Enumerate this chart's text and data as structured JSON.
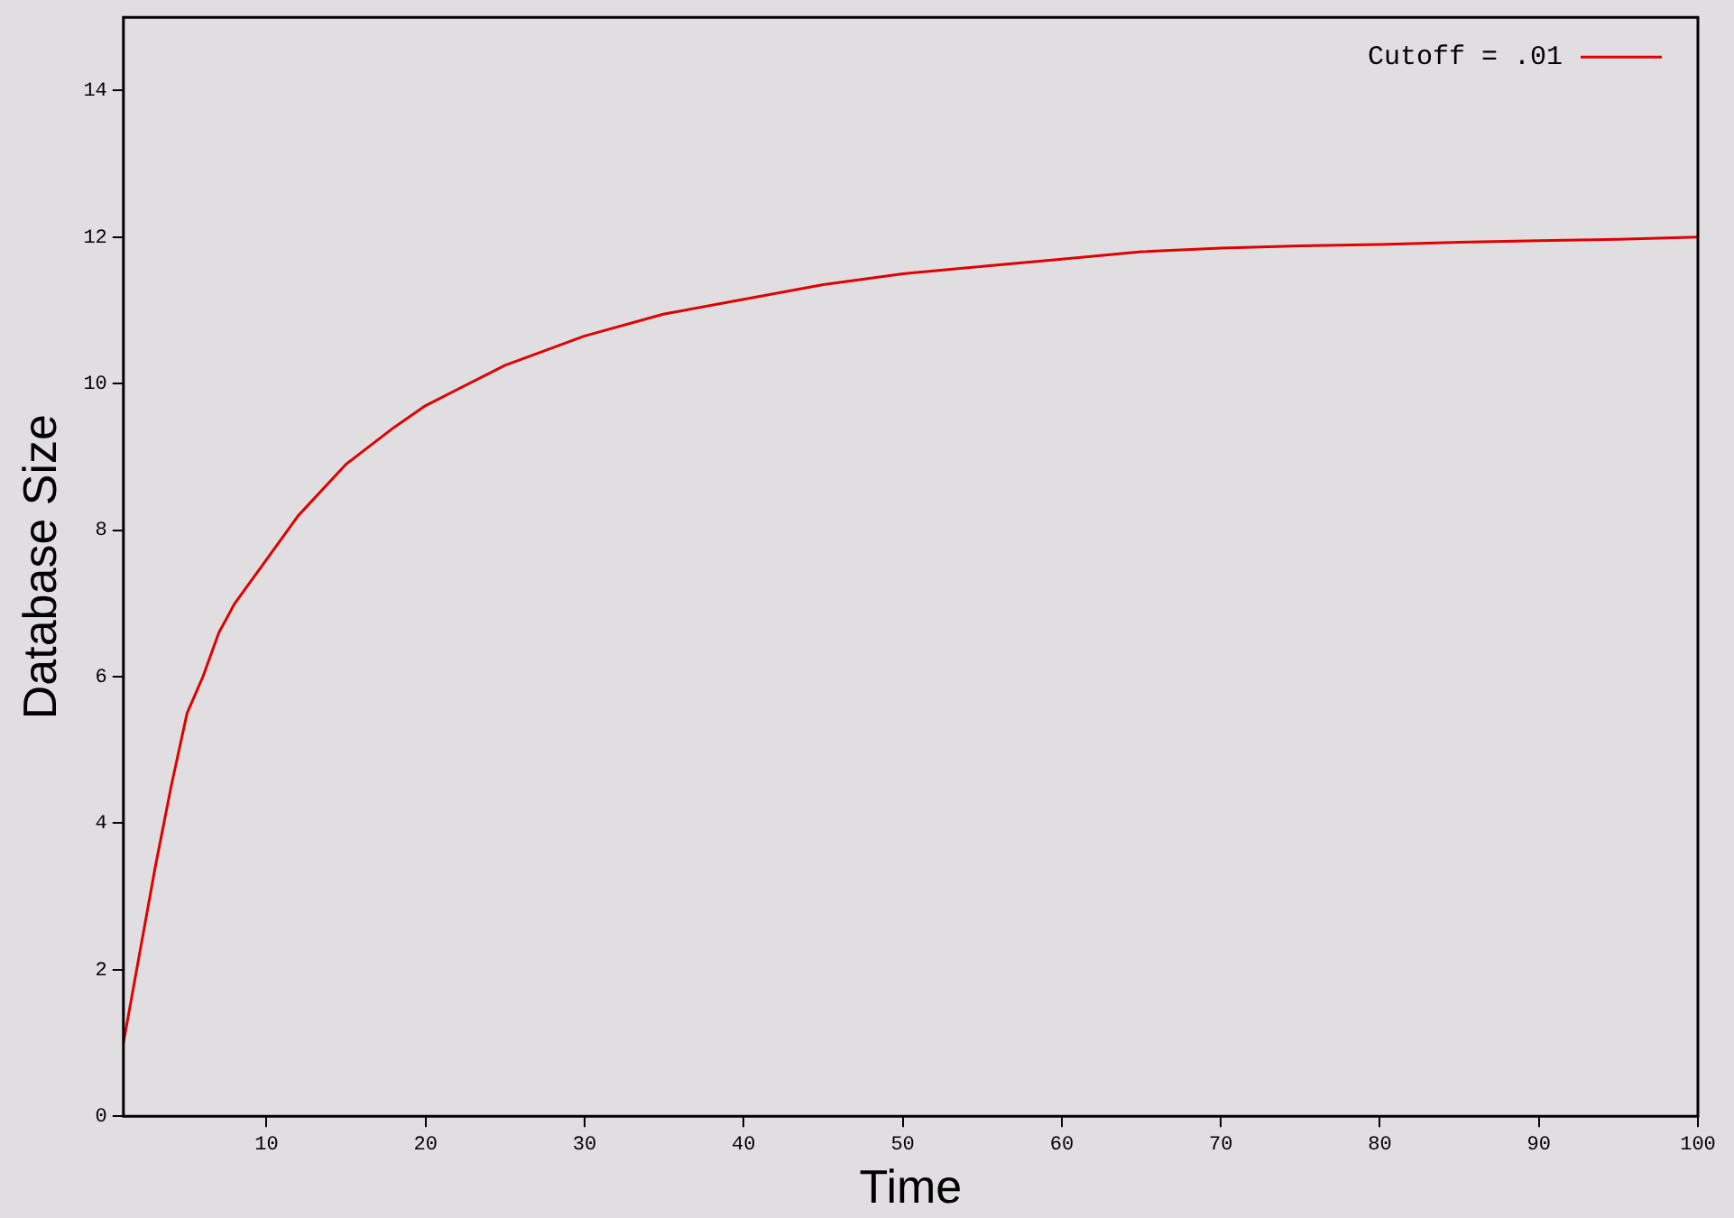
{
  "chart_data": {
    "type": "line",
    "xlabel": "Time",
    "ylabel": "Database Size",
    "x": [
      1,
      2,
      3,
      4,
      5,
      6,
      7,
      8,
      10,
      12,
      15,
      18,
      20,
      25,
      30,
      35,
      40,
      45,
      50,
      55,
      60,
      65,
      70,
      75,
      80,
      85,
      90,
      95,
      100
    ],
    "series": [
      {
        "name": "Cutoff = .01",
        "color": "#e00000",
        "values": [
          1,
          2.2,
          3.4,
          4.5,
          5.5,
          6.0,
          6.6,
          7.0,
          7.6,
          8.2,
          8.9,
          9.4,
          9.7,
          10.25,
          10.65,
          10.95,
          11.15,
          11.35,
          11.5,
          11.6,
          11.7,
          11.8,
          11.85,
          11.88,
          11.9,
          11.93,
          11.95,
          11.97,
          12.0
        ]
      }
    ],
    "xlim": [
      1,
      100
    ],
    "xticks": [
      10,
      20,
      30,
      40,
      50,
      60,
      70,
      80,
      90,
      100
    ],
    "ylim": [
      0,
      15
    ],
    "yticks": [
      0,
      2,
      4,
      6,
      8,
      10,
      12,
      14
    ],
    "grid": false,
    "legend": "top right",
    "marker": "none",
    "line_style": "solid"
  }
}
